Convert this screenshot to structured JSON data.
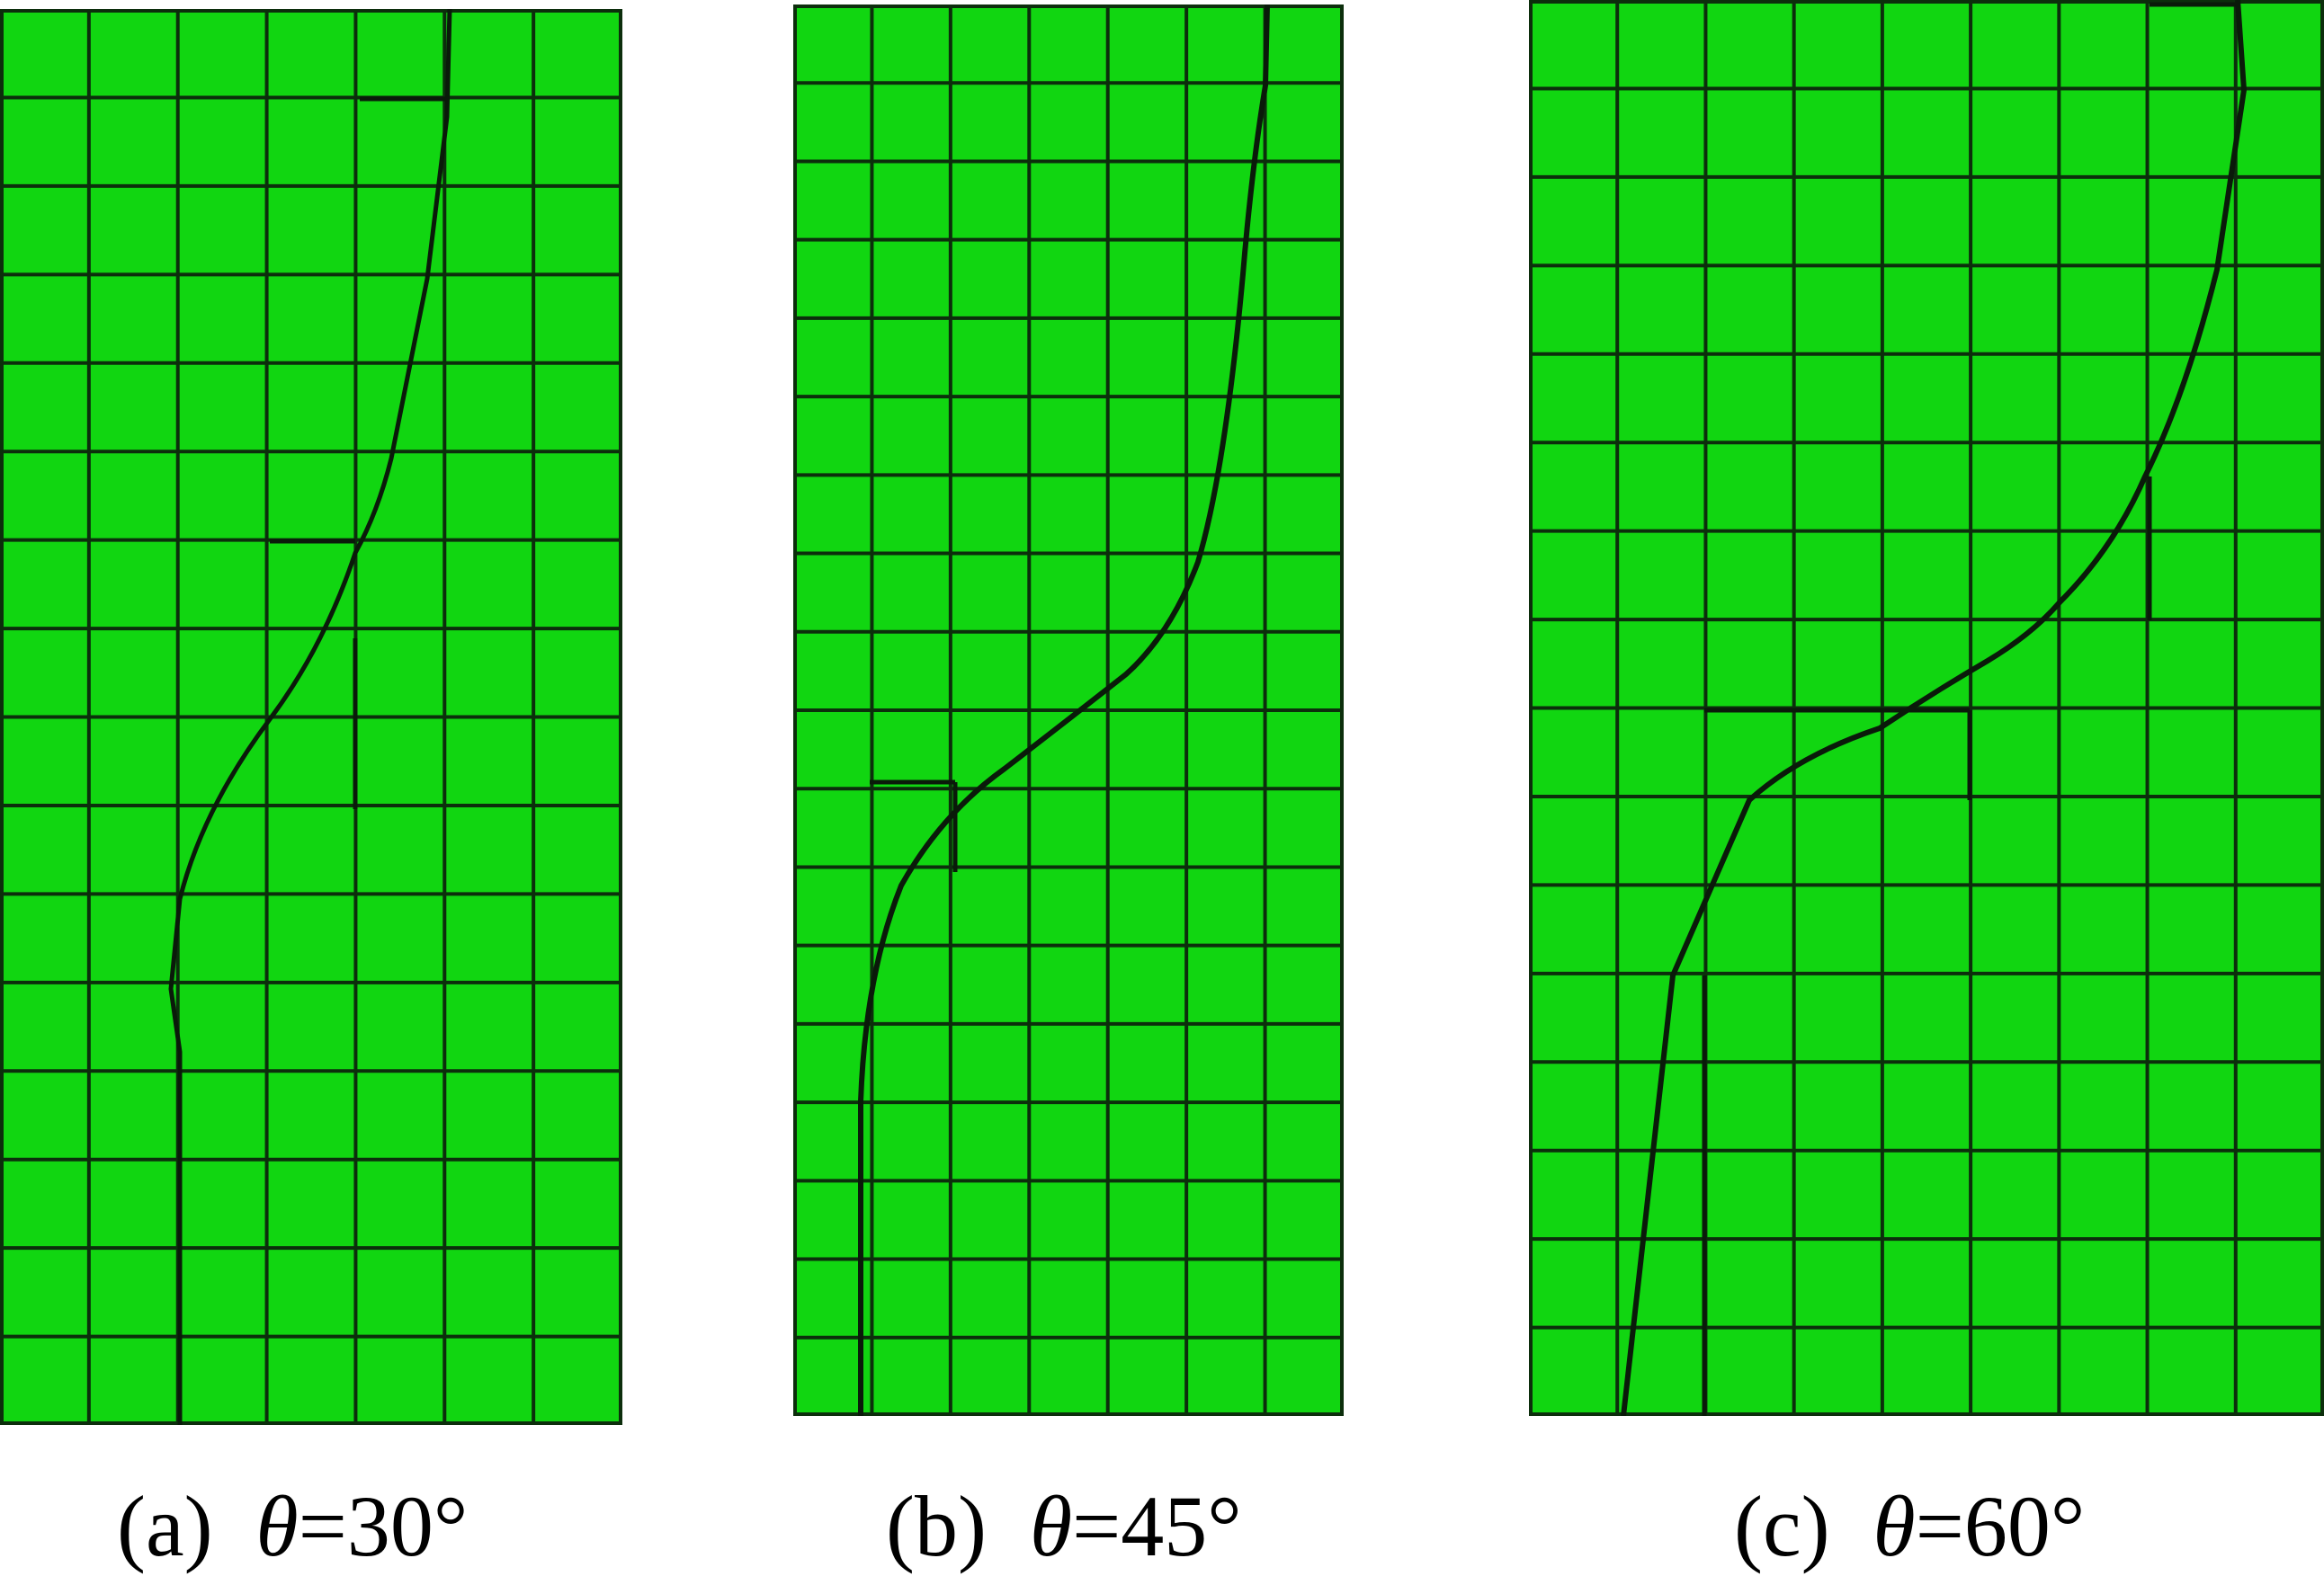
{
  "colors": {
    "mesh_fill": "#11d611",
    "grid_line": "#0c2e0c",
    "crack_line": "#0a1a0a"
  },
  "panels": [
    {
      "id": "a",
      "label": "(a)",
      "symbol": "θ",
      "equals": "=",
      "value": "30°",
      "cols": 7,
      "rows": 16
    },
    {
      "id": "b",
      "label": "(b)",
      "symbol": "θ",
      "equals": "=",
      "value": "45°",
      "cols": 7,
      "rows": 18
    },
    {
      "id": "c",
      "label": "(c)",
      "symbol": "θ",
      "equals": "=",
      "value": "60°",
      "cols": 9,
      "rows": 16
    }
  ]
}
